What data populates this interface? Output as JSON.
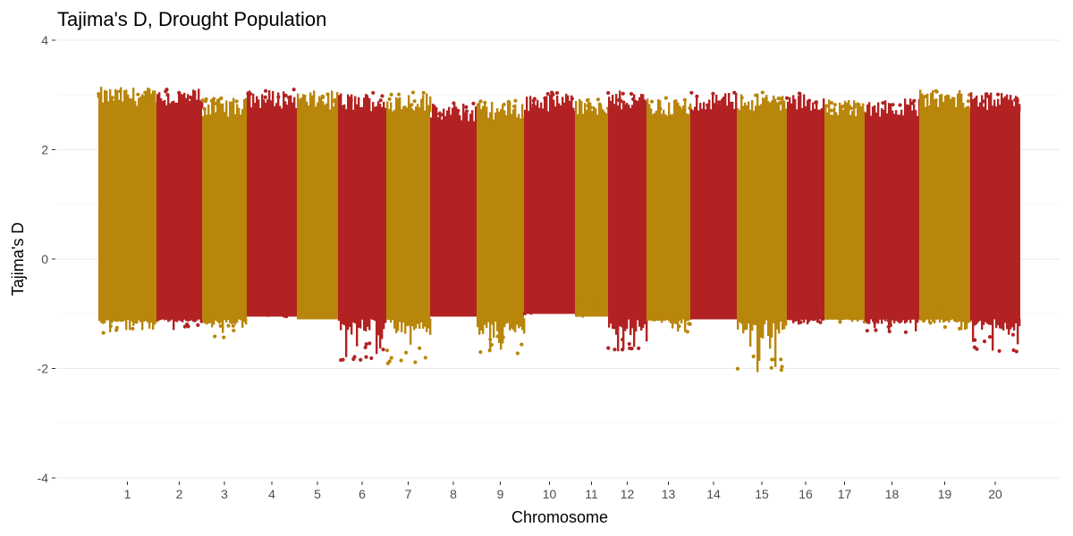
{
  "chart_data": {
    "type": "scatter",
    "title": "Tajima's D, Drought Population",
    "xlabel": "Chromosome",
    "ylabel": "Tajima's D",
    "ylim": [
      -4,
      4
    ],
    "y_ticks": [
      4,
      2,
      0,
      -2,
      -4
    ],
    "grid": true,
    "legend": "none",
    "colors": [
      "#b8860b",
      "#b22222"
    ],
    "categories": [
      "1",
      "2",
      "3",
      "4",
      "5",
      "6",
      "7",
      "8",
      "9",
      "10",
      "11",
      "12",
      "13",
      "14",
      "15",
      "16",
      "17",
      "18",
      "19",
      "20"
    ],
    "series": [
      {
        "chromosome": "1",
        "color": "#b8860b",
        "max": 3.15,
        "min": -1.38
      },
      {
        "chromosome": "2",
        "color": "#b22222",
        "max": 3.12,
        "min": -1.3
      },
      {
        "chromosome": "3",
        "color": "#b8860b",
        "max": 2.95,
        "min": -1.45
      },
      {
        "chromosome": "4",
        "color": "#b22222",
        "max": 3.1,
        "min": -1.05
      },
      {
        "chromosome": "5",
        "color": "#b8860b",
        "max": 3.08,
        "min": -1.1
      },
      {
        "chromosome": "6",
        "color": "#b22222",
        "max": 3.05,
        "min": -1.85
      },
      {
        "chromosome": "7",
        "color": "#b8860b",
        "max": 3.05,
        "min": -1.95
      },
      {
        "chromosome": "8",
        "color": "#b22222",
        "max": 2.85,
        "min": -1.05
      },
      {
        "chromosome": "9",
        "color": "#b8860b",
        "max": 2.9,
        "min": -1.75
      },
      {
        "chromosome": "10",
        "color": "#b22222",
        "max": 3.05,
        "min": -1.0
      },
      {
        "chromosome": "11",
        "color": "#b8860b",
        "max": 2.95,
        "min": -1.05
      },
      {
        "chromosome": "12",
        "color": "#b22222",
        "max": 3.08,
        "min": -1.75
      },
      {
        "chromosome": "13",
        "color": "#b8860b",
        "max": 2.95,
        "min": -1.35
      },
      {
        "chromosome": "14",
        "color": "#b22222",
        "max": 3.05,
        "min": -1.1
      },
      {
        "chromosome": "15",
        "color": "#b8860b",
        "max": 3.05,
        "min": -2.12
      },
      {
        "chromosome": "16",
        "color": "#b22222",
        "max": 3.05,
        "min": -1.2
      },
      {
        "chromosome": "17",
        "color": "#b8860b",
        "max": 2.95,
        "min": -1.15
      },
      {
        "chromosome": "18",
        "color": "#b22222",
        "max": 2.95,
        "min": -1.35
      },
      {
        "chromosome": "19",
        "color": "#b8860b",
        "max": 3.1,
        "min": -1.3
      },
      {
        "chromosome": "20",
        "color": "#b22222",
        "max": 3.05,
        "min": -1.7
      }
    ]
  }
}
